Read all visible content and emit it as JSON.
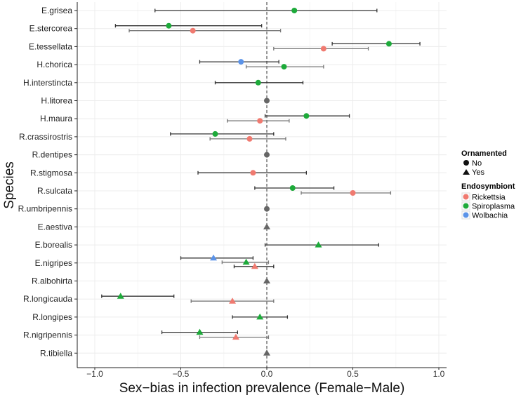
{
  "chart_data": {
    "type": "scatter",
    "subtype": "forest-plot with error bars",
    "xlabel": "Sex−bias in infection prevalence (Female−Male)",
    "ylabel": "Species",
    "xlim": [
      -1.1,
      1.1
    ],
    "xticks": [
      -1.0,
      -0.5,
      0.0,
      0.5,
      1.0
    ],
    "xtick_labels": [
      "−1.0",
      "−0.5",
      "0.0",
      "0.5",
      "1.0"
    ],
    "reference_line": 0,
    "grid": true,
    "legend_placement": "right",
    "legend": {
      "shape_title": "Ornamented",
      "shapes": [
        {
          "label": "No",
          "shape": "circle"
        },
        {
          "label": "Yes",
          "shape": "triangle"
        }
      ],
      "color_title": "Endosymbiont",
      "colors": [
        {
          "label": "Rickettsia",
          "color": "#F07A70"
        },
        {
          "label": "Spiroplasma",
          "color": "#1DAA3A"
        },
        {
          "label": "Wolbachia",
          "color": "#5B93E8"
        }
      ],
      "none_color": "#666666"
    },
    "species": [
      {
        "name": "E.grisea",
        "ornamented": "No",
        "points": [
          {
            "endo": "Spiroplasma",
            "est": 0.16,
            "lo": -0.65,
            "hi": 0.64
          }
        ]
      },
      {
        "name": "E.stercorea",
        "ornamented": "No",
        "points": [
          {
            "endo": "Spiroplasma",
            "est": -0.57,
            "lo": -0.88,
            "hi": -0.03
          },
          {
            "endo": "Rickettsia",
            "est": -0.43,
            "lo": -0.8,
            "hi": 0.08
          }
        ]
      },
      {
        "name": "E.tessellata",
        "ornamented": "No",
        "points": [
          {
            "endo": "Spiroplasma",
            "est": 0.71,
            "lo": 0.38,
            "hi": 0.89
          },
          {
            "endo": "Rickettsia",
            "est": 0.33,
            "lo": 0.04,
            "hi": 0.59
          }
        ]
      },
      {
        "name": "H.chorica",
        "ornamented": "No",
        "points": [
          {
            "endo": "Wolbachia",
            "est": -0.15,
            "lo": -0.39,
            "hi": 0.07
          },
          {
            "endo": "Spiroplasma",
            "est": 0.1,
            "lo": -0.12,
            "hi": 0.33
          }
        ]
      },
      {
        "name": "H.interstincta",
        "ornamented": "No",
        "points": [
          {
            "endo": "Spiroplasma",
            "est": -0.05,
            "lo": -0.3,
            "hi": 0.21
          }
        ]
      },
      {
        "name": "H.litorea",
        "ornamented": "No",
        "points": [
          {
            "endo": "None",
            "est": 0
          }
        ]
      },
      {
        "name": "H.maura",
        "ornamented": "No",
        "points": [
          {
            "endo": "Spiroplasma",
            "est": 0.23,
            "lo": -0.01,
            "hi": 0.48
          },
          {
            "endo": "Rickettsia",
            "est": -0.04,
            "lo": -0.23,
            "hi": 0.13
          }
        ]
      },
      {
        "name": "R.crassirostris",
        "ornamented": "No",
        "points": [
          {
            "endo": "Spiroplasma",
            "est": -0.3,
            "lo": -0.56,
            "hi": 0.04
          },
          {
            "endo": "Rickettsia",
            "est": -0.1,
            "lo": -0.33,
            "hi": 0.11
          }
        ]
      },
      {
        "name": "R.dentipes",
        "ornamented": "No",
        "points": [
          {
            "endo": "None",
            "est": 0
          }
        ]
      },
      {
        "name": "R.stigmosa",
        "ornamented": "No",
        "points": [
          {
            "endo": "Rickettsia",
            "est": -0.08,
            "lo": -0.4,
            "hi": 0.23
          }
        ]
      },
      {
        "name": "R.sulcata",
        "ornamented": "No",
        "points": [
          {
            "endo": "Spiroplasma",
            "est": 0.15,
            "lo": -0.07,
            "hi": 0.39
          },
          {
            "endo": "Rickettsia",
            "est": 0.5,
            "lo": 0.2,
            "hi": 0.72
          }
        ]
      },
      {
        "name": "R.umbripennis",
        "ornamented": "No",
        "points": [
          {
            "endo": "None",
            "est": 0
          }
        ]
      },
      {
        "name": "E.aestiva",
        "ornamented": "Yes",
        "points": [
          {
            "endo": "None",
            "est": 0
          }
        ]
      },
      {
        "name": "E.borealis",
        "ornamented": "Yes",
        "points": [
          {
            "endo": "Spiroplasma",
            "est": 0.3,
            "lo": -0.01,
            "hi": 0.65
          }
        ]
      },
      {
        "name": "E.nigripes",
        "ornamented": "Yes",
        "points": [
          {
            "endo": "Wolbachia",
            "est": -0.31,
            "lo": -0.5,
            "hi": -0.08
          },
          {
            "endo": "Spiroplasma",
            "est": -0.12,
            "lo": -0.26,
            "hi": 0.01
          },
          {
            "endo": "Rickettsia",
            "est": -0.07,
            "lo": -0.19,
            "hi": 0.04
          }
        ]
      },
      {
        "name": "R.albohirta",
        "ornamented": "Yes",
        "points": [
          {
            "endo": "None",
            "est": 0
          }
        ]
      },
      {
        "name": "R.longicauda",
        "ornamented": "Yes",
        "points": [
          {
            "endo": "Spiroplasma",
            "est": -0.85,
            "lo": -0.96,
            "hi": -0.54
          },
          {
            "endo": "Rickettsia",
            "est": -0.2,
            "lo": -0.44,
            "hi": 0.04
          }
        ]
      },
      {
        "name": "R.longipes",
        "ornamented": "Yes",
        "points": [
          {
            "endo": "Spiroplasma",
            "est": -0.04,
            "lo": -0.2,
            "hi": 0.12
          }
        ]
      },
      {
        "name": "R.nigripennis",
        "ornamented": "Yes",
        "points": [
          {
            "endo": "Spiroplasma",
            "est": -0.39,
            "lo": -0.61,
            "hi": -0.17
          },
          {
            "endo": "Rickettsia",
            "est": -0.18,
            "lo": -0.39,
            "hi": 0.01
          }
        ]
      },
      {
        "name": "R.tibiella",
        "ornamented": "Yes",
        "points": [
          {
            "endo": "None",
            "est": 0
          }
        ]
      }
    ]
  }
}
